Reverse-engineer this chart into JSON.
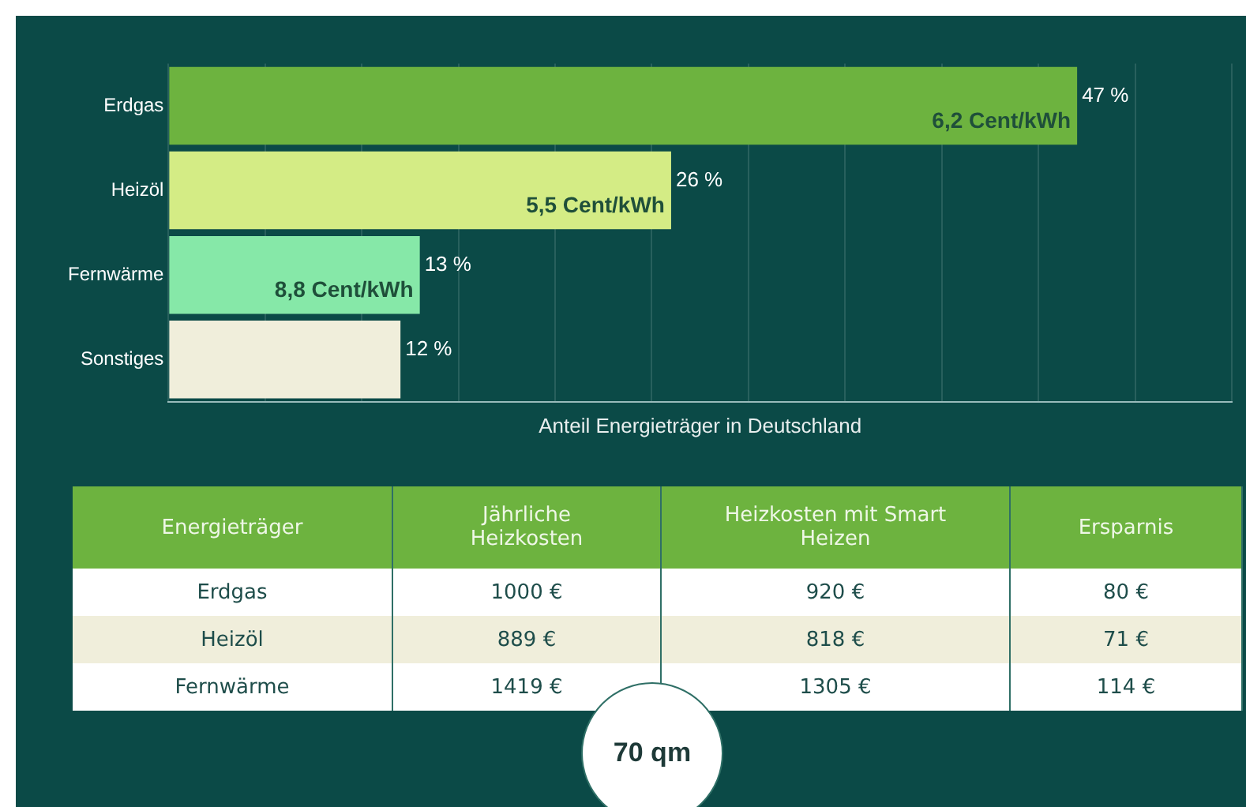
{
  "chart_data": [
    {
      "type": "bar",
      "orientation": "horizontal",
      "xlabel": "Anteil Energieträger in Deutschland",
      "categories": [
        "Erdgas",
        "Heizöl",
        "Fernwärme",
        "Sonstiges"
      ],
      "values": [
        47,
        26,
        13,
        12
      ],
      "colors": [
        "#6db33f",
        "#d4ec85",
        "#86e8a8",
        "#f0eedb"
      ],
      "value_labels": [
        "47 %",
        "26 %",
        "13 %",
        "12 %"
      ],
      "annotations": [
        {
          "text": "6,2 Cent/kWh",
          "x": 47,
          "y": "Erdgas"
        },
        {
          "text": "5,5 Cent/kWh",
          "x": 26,
          "y": "Heizöl"
        },
        {
          "text": "8,8 Cent/kWh",
          "x": 13,
          "y": "Fernwärme"
        }
      ],
      "xlim": [
        0,
        55
      ],
      "xticks": [
        {
          "value": 0,
          "label": null
        },
        {
          "value": 5,
          "label": null
        },
        {
          "value": 10,
          "label": null
        },
        {
          "value": 15,
          "label": null
        },
        {
          "value": 20,
          "label": null
        },
        {
          "value": 25,
          "label": null
        },
        {
          "value": 30,
          "label": null
        },
        {
          "value": 35,
          "label": null
        },
        {
          "value": 40,
          "label": null
        },
        {
          "value": 45,
          "label": null
        },
        {
          "value": 50,
          "label": null
        },
        {
          "value": 55,
          "label": null
        }
      ],
      "grid": "x",
      "tick_labels": "y",
      "legend": false
    },
    {
      "type": "other",
      "categories": [
        "Energieträger",
        "Jährliche Heizkosten",
        "Heizkosten mit Smart Heizen",
        "Ersparnis"
      ],
      "y_categories": [
        "Erdgas",
        "Heizöl",
        "Fernwärme"
      ],
      "cell_labels": [
        [
          "1000 €",
          "920 €",
          "80 €"
        ],
        [
          "889 €",
          "818 €",
          "71 €"
        ],
        [
          "1419 €",
          "1305 €",
          "114 €"
        ]
      ],
      "annotations": [
        "70 qm"
      ]
    }
  ]
}
